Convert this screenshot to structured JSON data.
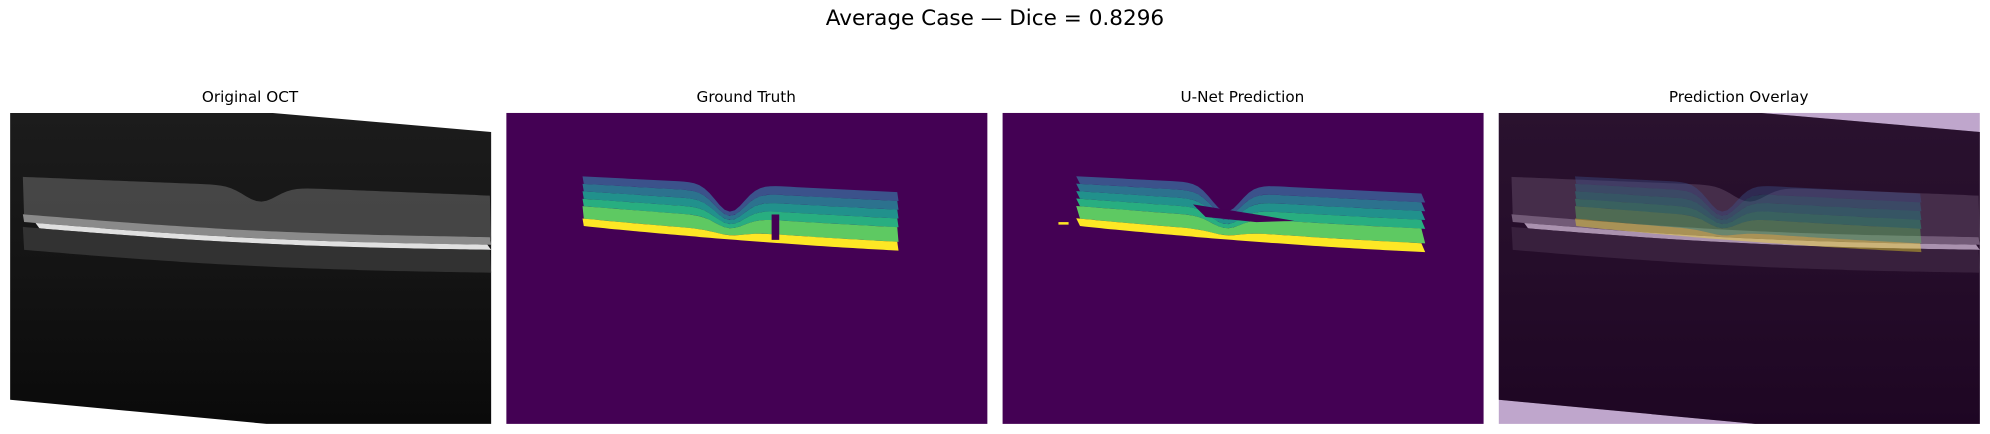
{
  "title": "Average Case — Dice = 0.8296",
  "panels": [
    {
      "title": "Original OCT"
    },
    {
      "title": "Ground Truth"
    },
    {
      "title": "U-Net Prediction"
    },
    {
      "title": "Prediction Overlay"
    }
  ]
}
